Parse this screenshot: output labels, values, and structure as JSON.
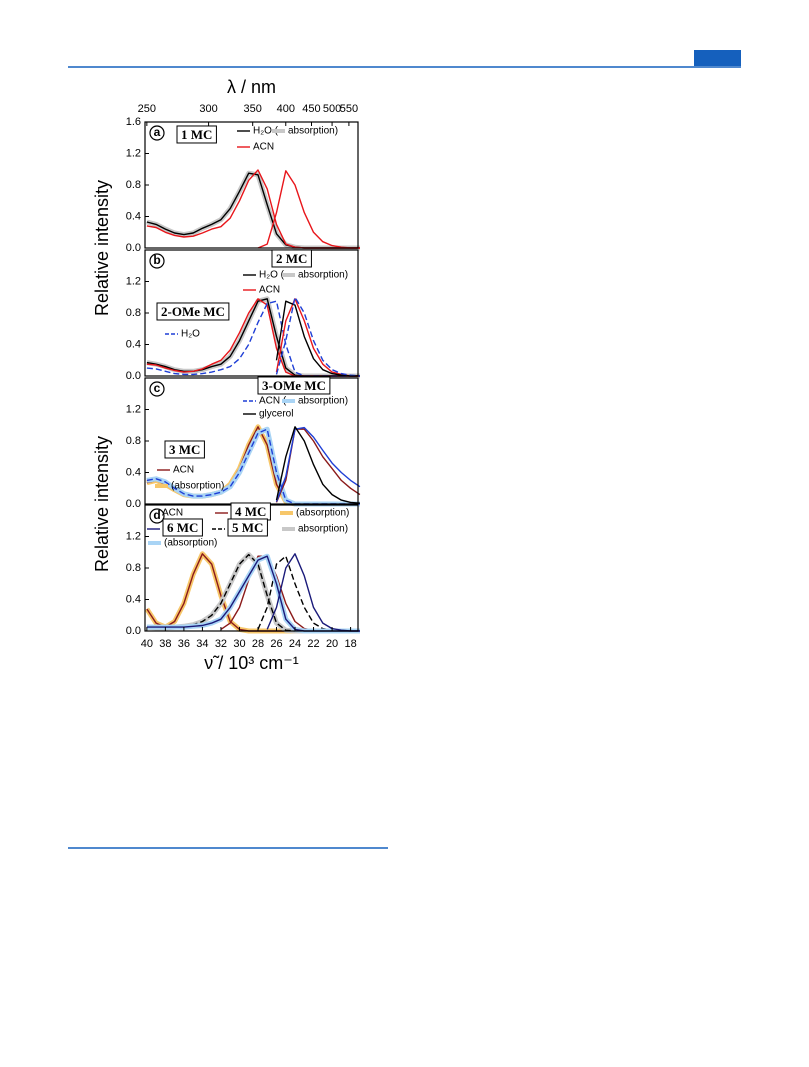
{
  "chart_data": [
    {
      "type": "line",
      "letter": "a",
      "x2label": "λ / nm",
      "x2ticks": [
        250,
        300,
        350,
        400,
        450,
        500,
        550
      ],
      "ylabel": "Relative intensity",
      "x": [
        40,
        39,
        38,
        37,
        36,
        35,
        34,
        33,
        32,
        31,
        30,
        29,
        28,
        27,
        26,
        25,
        24,
        23,
        22,
        21,
        20,
        19,
        18,
        17
      ],
      "xlim": [
        40.2,
        17.2
      ],
      "ylim": [
        0,
        1.6
      ],
      "yticks": [
        {
          "value": 0,
          "label": "0.0"
        },
        0.4,
        0.8,
        1.2,
        1.6
      ],
      "items": [
        {
          "text": "1 MC",
          "boxed": true
        },
        {
          "text": "H₂O (",
          "line": "#000000"
        },
        {
          "text": "absorption)",
          "swatch": "#c8c8c8"
        },
        {
          "text": "ACN",
          "line": "#e8161b"
        }
      ],
      "series": [
        {
          "color": "#000000",
          "halo": "#c8c8c8",
          "values": [
            0.33,
            0.3,
            0.24,
            0.19,
            0.17,
            0.19,
            0.25,
            0.3,
            0.36,
            0.5,
            0.72,
            0.95,
            0.93,
            0.55,
            0.18,
            0.04,
            0.01,
            0,
            0,
            0,
            0,
            0,
            0,
            0
          ]
        },
        {
          "color": "#e8161b",
          "values": [
            0.28,
            0.26,
            0.2,
            0.16,
            0.14,
            0.15,
            0.19,
            0.24,
            0.27,
            0.38,
            0.6,
            0.86,
            0.99,
            0.75,
            0.3,
            0.05,
            0.01,
            0,
            0,
            0,
            0,
            0,
            0,
            0
          ]
        },
        {
          "color": "#e8161b",
          "values": [
            null,
            null,
            null,
            null,
            null,
            null,
            null,
            null,
            null,
            null,
            null,
            null,
            0,
            0.05,
            0.45,
            0.98,
            0.8,
            0.45,
            0.2,
            0.08,
            0.03,
            0.01,
            0,
            0
          ]
        }
      ]
    },
    {
      "type": "line",
      "letter": "b",
      "x": [
        40,
        39,
        38,
        37,
        36,
        35,
        34,
        33,
        32,
        31,
        30,
        29,
        28,
        27,
        26,
        25,
        24,
        23,
        22,
        21,
        20,
        19,
        18,
        17
      ],
      "xlim": [
        40.2,
        17.2
      ],
      "ylim": [
        0,
        1.6
      ],
      "yticks": [
        {
          "value": 0,
          "label": "0.0"
        },
        0.4,
        0.8,
        1.2
      ],
      "items": [
        {
          "text": "2 MC",
          "boxed": true
        },
        {
          "text": "H₂O (",
          "line": "#000000"
        },
        {
          "text": "absorption)",
          "swatch": "#c8c8c8"
        },
        {
          "text": "ACN",
          "line": "#e8161b"
        },
        {
          "text": "2-OMe MC",
          "boxed": true
        },
        {
          "text": "H₂O",
          "line": "#1f3fd6",
          "dash": true
        }
      ],
      "series": [
        {
          "color": "#000000",
          "halo": "#c8c8c8",
          "values": [
            0.17,
            0.15,
            0.12,
            0.08,
            0.06,
            0.06,
            0.08,
            0.12,
            0.15,
            0.25,
            0.45,
            0.7,
            0.95,
            0.98,
            0.5,
            0.1,
            0.01,
            0,
            0,
            0,
            0,
            0,
            0,
            0
          ]
        },
        {
          "color": "#e8161b",
          "values": [
            0.15,
            0.14,
            0.1,
            0.07,
            0.05,
            0.06,
            0.09,
            0.15,
            0.2,
            0.33,
            0.55,
            0.8,
            0.98,
            0.9,
            0.35,
            0.05,
            0,
            0,
            0,
            0,
            0,
            0,
            0,
            0
          ]
        },
        {
          "color": "#1f3fd6",
          "dash": true,
          "values": [
            0.1,
            0.09,
            0.06,
            0.03,
            0.02,
            0.02,
            0.03,
            0.05,
            0.08,
            0.12,
            0.22,
            0.4,
            0.68,
            0.92,
            0.95,
            0.4,
            0.05,
            0,
            0,
            0,
            0,
            0,
            0,
            0
          ]
        },
        {
          "color": "#e8161b",
          "values": [
            null,
            null,
            null,
            null,
            null,
            null,
            null,
            null,
            null,
            null,
            null,
            null,
            null,
            null,
            0.05,
            0.7,
            0.98,
            0.7,
            0.35,
            0.15,
            0.05,
            0.02,
            0,
            0
          ]
        },
        {
          "color": "#000000",
          "values": [
            null,
            null,
            null,
            null,
            null,
            null,
            null,
            null,
            null,
            null,
            null,
            null,
            null,
            null,
            0.2,
            0.95,
            0.9,
            0.5,
            0.22,
            0.08,
            0.03,
            0.01,
            0,
            0
          ]
        },
        {
          "color": "#1f3fd6",
          "dash": true,
          "values": [
            null,
            null,
            null,
            null,
            null,
            null,
            null,
            null,
            null,
            null,
            null,
            null,
            null,
            null,
            0.02,
            0.45,
            1.0,
            0.8,
            0.45,
            0.2,
            0.08,
            0.03,
            0.01,
            0
          ]
        }
      ]
    },
    {
      "type": "line",
      "letter": "c",
      "ylabel": "Relative intensity",
      "x": [
        40,
        39,
        38,
        37,
        36,
        35,
        34,
        33,
        32,
        31,
        30,
        29,
        28,
        27,
        26,
        25,
        24,
        23,
        22,
        21,
        20,
        19,
        18,
        17
      ],
      "xlim": [
        40.2,
        17.2
      ],
      "ylim": [
        0,
        1.6
      ],
      "yticks": [
        {
          "value": 0,
          "label": "0.0"
        },
        0.4,
        0.8,
        1.2
      ],
      "items": [
        {
          "text": "3-OMe MC",
          "boxed": true
        },
        {
          "text": "ACN (",
          "line": "#1f3fd6",
          "dash": true
        },
        {
          "text": "absorption)",
          "swatch": "#a9d4f5"
        },
        {
          "text": "glycerol",
          "line": "#000000"
        },
        {
          "text": "3 MC",
          "boxed": true
        },
        {
          "text": "ACN",
          "line": "#8b1a1a"
        },
        {
          "text": "(absorption)",
          "swatch": "#f7c76a"
        }
      ],
      "series": [
        {
          "color": "#8b1a1a",
          "halo": "#f7c76a",
          "values": [
            0.27,
            0.3,
            0.25,
            0.18,
            0.12,
            0.1,
            0.1,
            0.12,
            0.15,
            0.25,
            0.45,
            0.75,
            0.98,
            0.75,
            0.25,
            0.03,
            0,
            0,
            0,
            0,
            0,
            0,
            0,
            0
          ]
        },
        {
          "color": "#1f3fd6",
          "dash": true,
          "halo": "#a9d4f5",
          "values": [
            0.3,
            0.32,
            0.28,
            0.2,
            0.13,
            0.1,
            0.1,
            0.12,
            0.15,
            0.22,
            0.4,
            0.65,
            0.9,
            0.95,
            0.4,
            0.05,
            0,
            0,
            0,
            0,
            0,
            0,
            0,
            0
          ]
        },
        {
          "color": "#8b1a1a",
          "values": [
            null,
            null,
            null,
            null,
            null,
            null,
            null,
            null,
            null,
            null,
            null,
            null,
            null,
            null,
            0.02,
            0.3,
            0.95,
            0.95,
            0.8,
            0.6,
            0.45,
            0.3,
            0.2,
            0.12
          ]
        },
        {
          "color": "#1f3fd6",
          "values": [
            null,
            null,
            null,
            null,
            null,
            null,
            null,
            null,
            null,
            null,
            null,
            null,
            null,
            null,
            0.03,
            0.35,
            0.95,
            0.97,
            0.85,
            0.68,
            0.52,
            0.4,
            0.3,
            0.22
          ]
        },
        {
          "color": "#000000",
          "values": [
            null,
            null,
            null,
            null,
            null,
            null,
            null,
            null,
            null,
            null,
            null,
            null,
            null,
            null,
            0.05,
            0.6,
            0.98,
            0.8,
            0.5,
            0.25,
            0.12,
            0.05,
            0.02,
            0.01
          ]
        }
      ]
    },
    {
      "type": "line",
      "letter": "d",
      "xlabel": "ν̃ / 10³ cm⁻¹",
      "x": [
        40,
        39,
        38,
        37,
        36,
        35,
        34,
        33,
        32,
        31,
        30,
        29,
        28,
        27,
        26,
        25,
        24,
        23,
        22,
        21,
        20,
        19,
        18,
        17
      ],
      "xlim": [
        40.2,
        17.2
      ],
      "xticks": [
        40,
        38,
        36,
        34,
        32,
        30,
        28,
        26,
        24,
        22,
        20,
        18
      ],
      "ylim": [
        0,
        1.6
      ],
      "yticks": [
        {
          "value": 0,
          "label": "0.0"
        },
        0.4,
        0.8,
        1.2
      ],
      "items": [
        {
          "text": "ACN"
        },
        {
          "text": "4 MC",
          "boxed": true,
          "line": "#8b1a1a"
        },
        {
          "text": "(absorption)",
          "swatch": "#f7c76a"
        },
        {
          "text": "6 MC",
          "boxed": true,
          "line": "#1a1a7a"
        },
        {
          "text": "5 MC",
          "boxed": true,
          "line": "#000000",
          "dash": true
        },
        {
          "text": "absorption)",
          "swatch": "#c8c8c8"
        },
        {
          "text": "(absorption)",
          "swatch": "#a9d4f5"
        }
      ],
      "series": [
        {
          "color": "#8b1a1a",
          "halo": "#f7c76a",
          "values": [
            0.28,
            0.1,
            0.05,
            0.12,
            0.35,
            0.72,
            0.98,
            0.85,
            0.45,
            0.12,
            0.02,
            0,
            0,
            0,
            0,
            0,
            0,
            0,
            0,
            0,
            0,
            0,
            0,
            0
          ]
        },
        {
          "color": "#8b1a1a",
          "values": [
            null,
            null,
            null,
            null,
            null,
            null,
            null,
            null,
            0.02,
            0.1,
            0.3,
            0.65,
            0.95,
            0.95,
            0.7,
            0.35,
            0.12,
            0.03,
            0.01,
            0,
            0,
            0,
            0,
            0
          ]
        },
        {
          "color": "#000000",
          "dash": true,
          "halo": "#c8c8c8",
          "values": [
            0.05,
            0.04,
            0.04,
            0.05,
            0.06,
            0.08,
            0.12,
            0.2,
            0.35,
            0.6,
            0.85,
            0.97,
            0.85,
            0.45,
            0.1,
            0.01,
            0,
            0,
            0,
            0,
            0,
            0,
            0,
            0
          ]
        },
        {
          "color": "#000000",
          "dash": true,
          "values": [
            null,
            null,
            null,
            null,
            null,
            null,
            null,
            null,
            null,
            null,
            null,
            null,
            0.02,
            0.3,
            0.85,
            0.95,
            0.6,
            0.3,
            0.1,
            0.03,
            0.01,
            0,
            0,
            0
          ]
        },
        {
          "color": "#1a1a7a",
          "halo": "#a9d4f5",
          "values": [
            0.05,
            0.05,
            0.05,
            0.05,
            0.05,
            0.06,
            0.07,
            0.1,
            0.15,
            0.3,
            0.5,
            0.7,
            0.9,
            0.95,
            0.6,
            0.15,
            0.02,
            0,
            0,
            0,
            0,
            0,
            0,
            0
          ]
        },
        {
          "color": "#1a1a7a",
          "values": [
            null,
            null,
            null,
            null,
            null,
            null,
            null,
            null,
            null,
            null,
            null,
            null,
            null,
            0.02,
            0.3,
            0.8,
            0.98,
            0.7,
            0.3,
            0.1,
            0.03,
            0.01,
            0,
            0
          ]
        }
      ]
    }
  ]
}
